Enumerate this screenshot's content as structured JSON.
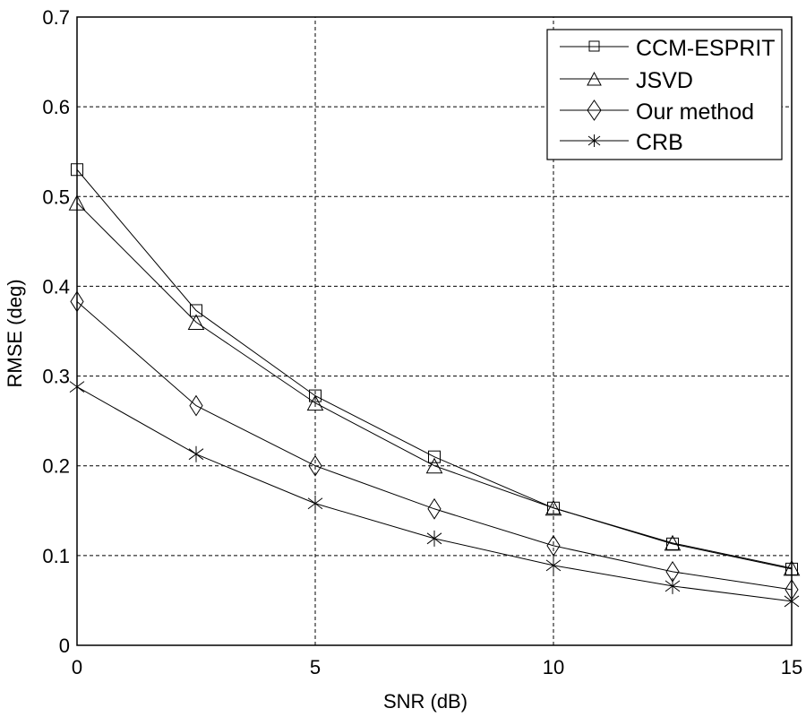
{
  "chart_data": {
    "type": "line",
    "title": "",
    "xlabel": "SNR (dB)",
    "ylabel": "RMSE (deg)",
    "xlim": [
      0,
      15
    ],
    "ylim": [
      0,
      0.7
    ],
    "grid": true,
    "legend_position": "upper right",
    "x": [
      0,
      2.5,
      5,
      7.5,
      10,
      12.5,
      15
    ],
    "xticks": [
      "0",
      "5",
      "10",
      "15"
    ],
    "yticks": [
      "0",
      "0.1",
      "0.2",
      "0.3",
      "0.4",
      "0.5",
      "0.6",
      "0.7"
    ],
    "series": [
      {
        "name": "CCM-ESPRIT",
        "marker": "square",
        "values": [
          0.53,
          0.373,
          0.278,
          0.21,
          0.153,
          0.113,
          0.085
        ]
      },
      {
        "name": "JSVD",
        "marker": "triangle",
        "values": [
          0.493,
          0.36,
          0.27,
          0.2,
          0.153,
          0.114,
          0.086
        ]
      },
      {
        "name": "Our method",
        "marker": "diamond",
        "values": [
          0.383,
          0.267,
          0.2,
          0.152,
          0.111,
          0.082,
          0.062
        ]
      },
      {
        "name": "CRB",
        "marker": "asterisk",
        "values": [
          0.288,
          0.213,
          0.158,
          0.119,
          0.089,
          0.066,
          0.049
        ]
      }
    ]
  },
  "labels": {
    "xlabel": "SNR (dB)",
    "ylabel": "RMSE (deg)",
    "legend": [
      "CCM-ESPRIT",
      "JSVD",
      "Our method",
      "CRB"
    ]
  }
}
